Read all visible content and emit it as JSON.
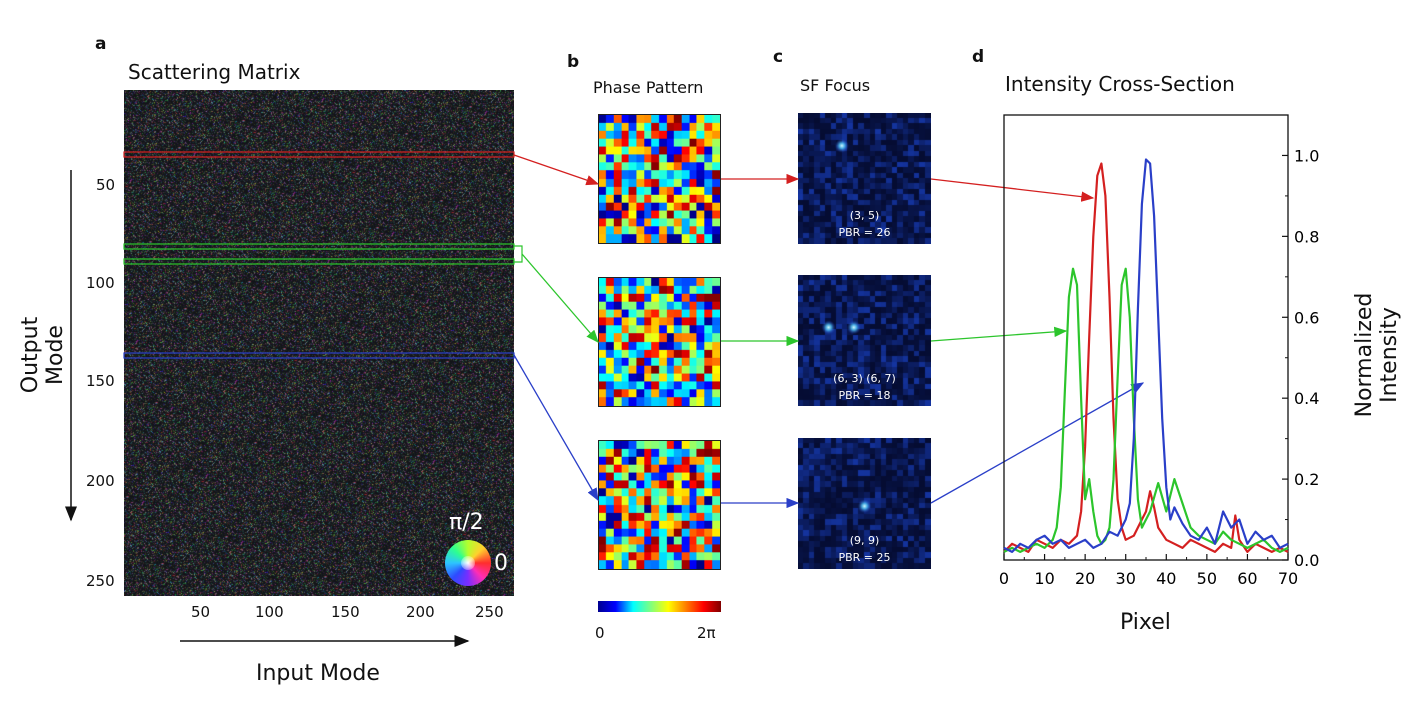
{
  "panels": {
    "a": {
      "letter": "a",
      "title": "Scattering Matrix",
      "ytitle": "Output Mode",
      "xtitle": "Input Mode",
      "yticks": [
        "50",
        "100",
        "150",
        "200",
        "250"
      ],
      "xticks": [
        "50",
        "100",
        "150",
        "200",
        "250"
      ],
      "wheel_label_top": "π/2",
      "wheel_label_right": "0"
    },
    "b": {
      "letter": "b",
      "title": "Phase Pattern",
      "colorbar_min": "0",
      "colorbar_max": "2π"
    },
    "c": {
      "letter": "c",
      "title": "SF Focus",
      "foci": [
        {
          "coords": "(3, 5)",
          "pbr": "PBR = 26"
        },
        {
          "coords": "(6, 3) (6, 7)",
          "pbr": "PBR = 18"
        },
        {
          "coords": "(9, 9)",
          "pbr": "PBR = 25"
        }
      ]
    },
    "d": {
      "letter": "d",
      "title": "Intensity Cross-Section"
    }
  },
  "colors": {
    "red": "#d42020",
    "green": "#2cc52c",
    "blue": "#2a3fc8"
  },
  "chart_data": {
    "type": "line",
    "title": "Intensity Cross-Section",
    "xlabel": "Pixel",
    "ylabel": "Normalized Intensity",
    "xlim": [
      0,
      70
    ],
    "ylim": [
      0,
      1.1
    ],
    "xticks": [
      0,
      10,
      20,
      30,
      40,
      50,
      60,
      70
    ],
    "yticks": [
      0.0,
      0.2,
      0.4,
      0.6,
      0.8,
      1.0
    ],
    "ytick_labels": [
      "0.0",
      "0.2",
      "0.4",
      "0.6",
      "0.8",
      "1.0"
    ],
    "yaxis_side": "right",
    "grid": false,
    "series": [
      {
        "color": "#d42020",
        "x": [
          0,
          2,
          4,
          6,
          8,
          10,
          12,
          14,
          16,
          18,
          19,
          20,
          21,
          22,
          23,
          24,
          25,
          26,
          27,
          28,
          29,
          30,
          32,
          34,
          35,
          36,
          37,
          38,
          40,
          42,
          44,
          46,
          48,
          50,
          52,
          54,
          56,
          57,
          58,
          60,
          62,
          64,
          66,
          68,
          70
        ],
        "y": [
          0.02,
          0.04,
          0.03,
          0.02,
          0.05,
          0.04,
          0.03,
          0.05,
          0.04,
          0.06,
          0.12,
          0.28,
          0.55,
          0.8,
          0.95,
          0.98,
          0.9,
          0.65,
          0.35,
          0.15,
          0.08,
          0.05,
          0.06,
          0.1,
          0.12,
          0.17,
          0.13,
          0.08,
          0.05,
          0.04,
          0.03,
          0.05,
          0.04,
          0.03,
          0.02,
          0.04,
          0.03,
          0.11,
          0.05,
          0.02,
          0.04,
          0.03,
          0.02,
          0.03,
          0.02
        ]
      },
      {
        "color": "#2cc52c",
        "x": [
          0,
          2,
          4,
          6,
          8,
          10,
          12,
          13,
          14,
          15,
          16,
          17,
          18,
          19,
          20,
          21,
          22,
          23,
          24,
          25,
          26,
          27,
          28,
          29,
          30,
          31,
          32,
          33,
          34,
          36,
          38,
          40,
          42,
          44,
          46,
          48,
          50,
          52,
          54,
          56,
          58,
          60,
          62,
          64,
          66,
          68,
          70
        ],
        "y": [
          0.02,
          0.03,
          0.02,
          0.03,
          0.04,
          0.03,
          0.05,
          0.08,
          0.18,
          0.42,
          0.65,
          0.72,
          0.68,
          0.4,
          0.15,
          0.2,
          0.12,
          0.06,
          0.04,
          0.05,
          0.08,
          0.2,
          0.45,
          0.68,
          0.72,
          0.6,
          0.35,
          0.15,
          0.08,
          0.12,
          0.19,
          0.12,
          0.2,
          0.14,
          0.08,
          0.06,
          0.05,
          0.04,
          0.07,
          0.05,
          0.04,
          0.03,
          0.04,
          0.05,
          0.03,
          0.02,
          0.03
        ]
      },
      {
        "color": "#2a3fc8",
        "x": [
          0,
          2,
          4,
          6,
          8,
          10,
          12,
          14,
          16,
          18,
          20,
          22,
          24,
          26,
          28,
          30,
          31,
          32,
          33,
          34,
          35,
          36,
          37,
          38,
          39,
          40,
          41,
          42,
          44,
          46,
          48,
          50,
          52,
          54,
          56,
          58,
          60,
          62,
          64,
          66,
          68,
          70
        ],
        "y": [
          0.03,
          0.02,
          0.04,
          0.03,
          0.05,
          0.06,
          0.04,
          0.05,
          0.03,
          0.04,
          0.05,
          0.03,
          0.04,
          0.07,
          0.06,
          0.1,
          0.14,
          0.3,
          0.62,
          0.88,
          0.99,
          0.98,
          0.85,
          0.6,
          0.35,
          0.18,
          0.1,
          0.13,
          0.09,
          0.06,
          0.05,
          0.08,
          0.04,
          0.12,
          0.08,
          0.1,
          0.04,
          0.07,
          0.05,
          0.06,
          0.03,
          0.04
        ]
      }
    ]
  }
}
